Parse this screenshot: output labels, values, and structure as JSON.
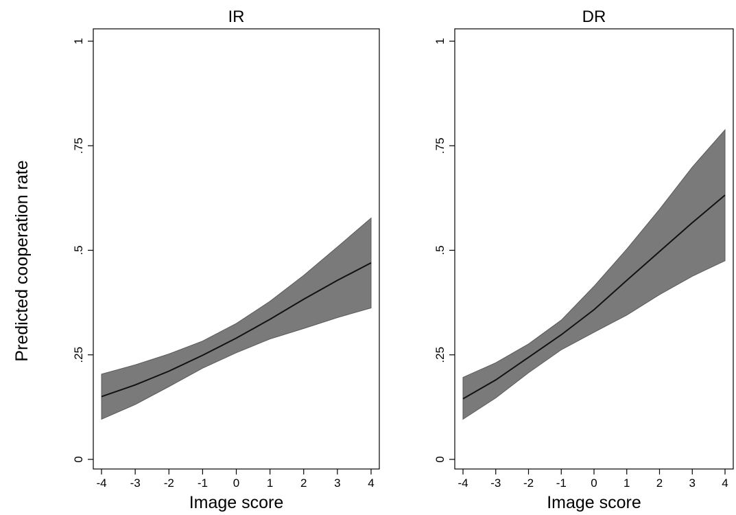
{
  "figure": {
    "ylabel": "Predicted cooperation rate"
  },
  "colors": {
    "band": "#7a7a7a",
    "line": "#111111",
    "axis": "#000000"
  },
  "chart_data": [
    {
      "type": "area",
      "title": "IR",
      "xlabel": "Image score",
      "ylabel": "Predicted cooperation rate",
      "xlim": [
        -4,
        4
      ],
      "ylim": [
        0,
        1
      ],
      "xticks": [
        "-4",
        "-3",
        "-2",
        "-1",
        "0",
        "1",
        "2",
        "3",
        "4"
      ],
      "yticks": [
        "0",
        ".25",
        ".5",
        ".75",
        "1"
      ],
      "grid": false,
      "x": [
        -4,
        -3,
        -2,
        -1,
        0,
        1,
        2,
        3,
        4
      ],
      "series": [
        {
          "role": "estimate",
          "values": [
            0.15,
            0.178,
            0.211,
            0.249,
            0.29,
            0.335,
            0.383,
            0.428,
            0.47
          ]
        },
        {
          "role": "upper",
          "values": [
            0.204,
            0.226,
            0.252,
            0.283,
            0.325,
            0.378,
            0.44,
            0.508,
            0.577
          ]
        },
        {
          "role": "lower",
          "values": [
            0.096,
            0.131,
            0.174,
            0.218,
            0.255,
            0.288,
            0.313,
            0.339,
            0.362
          ]
        }
      ]
    },
    {
      "type": "area",
      "title": "DR",
      "xlabel": "Image score",
      "ylabel": "",
      "xlim": [
        -4,
        4
      ],
      "ylim": [
        0,
        1
      ],
      "xticks": [
        "-4",
        "-3",
        "-2",
        "-1",
        "0",
        "1",
        "2",
        "3",
        "4"
      ],
      "yticks": [
        "0",
        ".25",
        ".5",
        ".75",
        "1"
      ],
      "grid": false,
      "x": [
        -4,
        -3,
        -2,
        -1,
        0,
        1,
        2,
        3,
        4
      ],
      "series": [
        {
          "role": "estimate",
          "values": [
            0.145,
            0.19,
            0.244,
            0.298,
            0.358,
            0.428,
            0.497,
            0.566,
            0.632
          ]
        },
        {
          "role": "upper",
          "values": [
            0.196,
            0.231,
            0.276,
            0.333,
            0.414,
            0.503,
            0.598,
            0.699,
            0.788
          ]
        },
        {
          "role": "lower",
          "values": [
            0.096,
            0.147,
            0.207,
            0.262,
            0.304,
            0.345,
            0.394,
            0.438,
            0.475
          ]
        }
      ]
    }
  ]
}
